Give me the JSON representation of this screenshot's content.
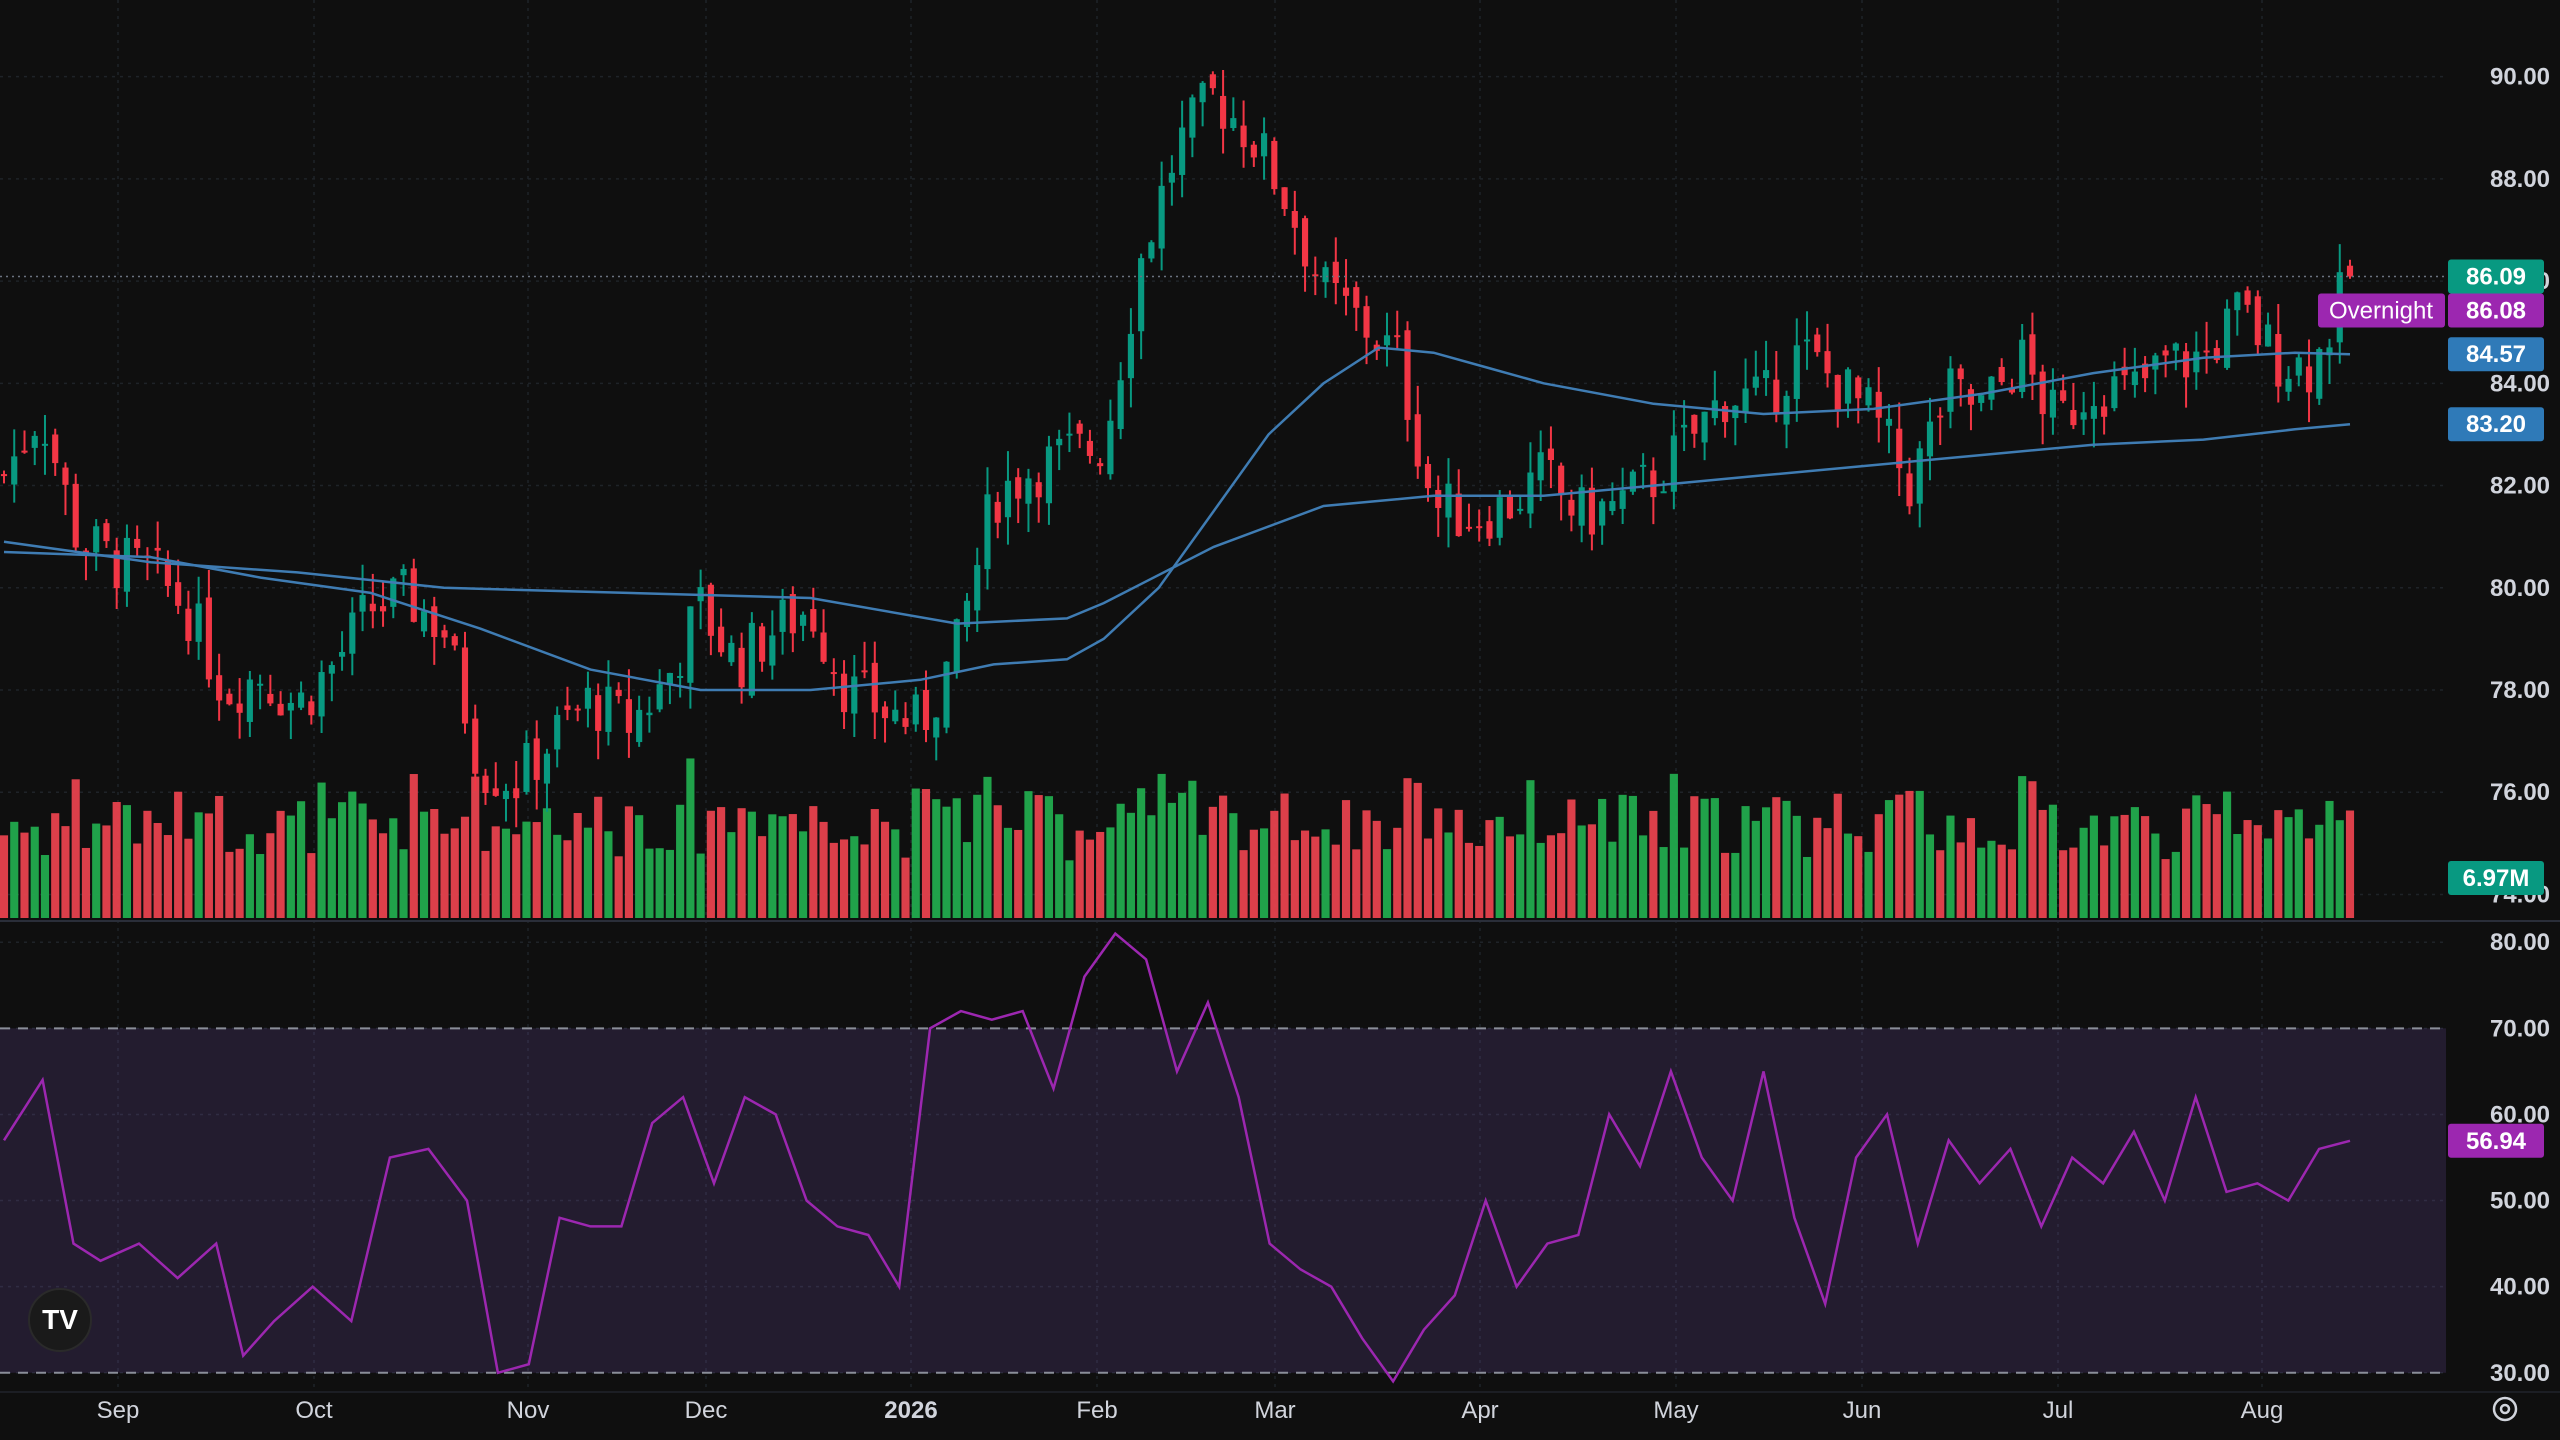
{
  "chart_data": [
    {
      "type": "candlestick",
      "title": "",
      "price_axis": {
        "range": [
          73.5,
          91.5
        ],
        "ticks": [
          "90.00",
          "88.00",
          "86.00",
          "84.00",
          "82.00",
          "80.00",
          "78.00",
          "76.00",
          "74.00"
        ],
        "tick_values": [
          90,
          88,
          86,
          84,
          82,
          80,
          78,
          76,
          74
        ]
      },
      "time_axis": {
        "labels": [
          "Sep",
          "Oct",
          "Nov",
          "Dec",
          "2026",
          "Feb",
          "Mar",
          "Apr",
          "May",
          "Jun",
          "Jul",
          "Aug"
        ],
        "bold_label": "2026"
      },
      "grid": true,
      "last_price": {
        "label": "86.09",
        "value": 86.09,
        "color": "#089981"
      },
      "overnight": {
        "label": "Overnight",
        "price_label": "86.08",
        "value": 86.08,
        "color": "#9c27b0"
      },
      "moving_averages": [
        {
          "label": "84.57",
          "value": 84.57,
          "color": "#2962ff",
          "points": [
            [
              0,
              80.7
            ],
            [
              40,
              80.6
            ],
            [
              70,
              80.2
            ],
            [
              100,
              79.9
            ],
            [
              130,
              79.2
            ],
            [
              160,
              78.4
            ],
            [
              190,
              78.0
            ],
            [
              220,
              78.0
            ],
            [
              250,
              78.2
            ],
            [
              270,
              78.5
            ],
            [
              290,
              78.6
            ],
            [
              300,
              79.0
            ],
            [
              315,
              80.0
            ],
            [
              330,
              81.5
            ],
            [
              345,
              83.0
            ],
            [
              360,
              84.0
            ],
            [
              375,
              84.7
            ],
            [
              390,
              84.6
            ],
            [
              405,
              84.3
            ],
            [
              420,
              84.0
            ],
            [
              450,
              83.6
            ],
            [
              480,
              83.4
            ],
            [
              510,
              83.5
            ],
            [
              540,
              83.8
            ],
            [
              570,
              84.2
            ],
            [
              600,
              84.5
            ],
            [
              625,
              84.6
            ],
            [
              640,
              84.57
            ]
          ]
        },
        {
          "label": "83.20",
          "value": 83.2,
          "color": "#2962ff",
          "points": [
            [
              0,
              80.9
            ],
            [
              40,
              80.5
            ],
            [
              80,
              80.3
            ],
            [
              120,
              80.0
            ],
            [
              170,
              79.9
            ],
            [
              220,
              79.8
            ],
            [
              260,
              79.3
            ],
            [
              290,
              79.4
            ],
            [
              300,
              79.7
            ],
            [
              330,
              80.8
            ],
            [
              360,
              81.6
            ],
            [
              390,
              81.8
            ],
            [
              420,
              81.8
            ],
            [
              450,
              82.0
            ],
            [
              480,
              82.2
            ],
            [
              510,
              82.4
            ],
            [
              540,
              82.6
            ],
            [
              570,
              82.8
            ],
            [
              600,
              82.9
            ],
            [
              625,
              83.1
            ],
            [
              640,
              83.2
            ]
          ]
        }
      ],
      "ohlc_anchors": [
        [
          0,
          82.2
        ],
        [
          10,
          83.5
        ],
        [
          20,
          81.0
        ],
        [
          30,
          80.5
        ],
        [
          40,
          80.3
        ],
        [
          50,
          79.6
        ],
        [
          60,
          78.0
        ],
        [
          70,
          78.3
        ],
        [
          80,
          77.7
        ],
        [
          90,
          78.5
        ],
        [
          100,
          79.6
        ],
        [
          110,
          79.8
        ],
        [
          120,
          79.2
        ],
        [
          130,
          76.5
        ],
        [
          140,
          76.2
        ],
        [
          150,
          77.1
        ],
        [
          160,
          77.8
        ],
        [
          170,
          77.3
        ],
        [
          180,
          78.1
        ],
        [
          190,
          79.6
        ],
        [
          200,
          78.5
        ],
        [
          210,
          79.2
        ],
        [
          220,
          79.6
        ],
        [
          230,
          78.0
        ],
        [
          240,
          77.6
        ],
        [
          250,
          77.3
        ],
        [
          260,
          78.8
        ],
        [
          270,
          81.8
        ],
        [
          280,
          82.3
        ],
        [
          290,
          82.6
        ],
        [
          300,
          82.8
        ],
        [
          310,
          86.4
        ],
        [
          320,
          88.6
        ],
        [
          330,
          89.6
        ],
        [
          340,
          88.9
        ],
        [
          350,
          87.6
        ],
        [
          360,
          85.8
        ],
        [
          370,
          85.2
        ],
        [
          380,
          84.5
        ],
        [
          390,
          81.6
        ],
        [
          400,
          81.4
        ],
        [
          410,
          81.6
        ],
        [
          420,
          82.2
        ],
        [
          430,
          81.4
        ],
        [
          440,
          81.6
        ],
        [
          450,
          82.1
        ],
        [
          460,
          82.9
        ],
        [
          470,
          83.8
        ],
        [
          480,
          83.6
        ],
        [
          490,
          84.6
        ],
        [
          500,
          84.0
        ],
        [
          510,
          83.3
        ],
        [
          520,
          82.0
        ],
        [
          530,
          83.8
        ],
        [
          540,
          83.5
        ],
        [
          550,
          84.5
        ],
        [
          560,
          83.2
        ],
        [
          570,
          84.0
        ],
        [
          580,
          83.8
        ],
        [
          590,
          84.4
        ],
        [
          600,
          84.5
        ],
        [
          610,
          85.4
        ],
        [
          620,
          84.5
        ],
        [
          630,
          84.3
        ],
        [
          640,
          86.09
        ]
      ],
      "volume": {
        "last_label": "6.97M",
        "last_value": 6970000,
        "color_up": "#089981",
        "color_down": "#f23645"
      }
    },
    {
      "type": "line",
      "indicator": "RSI",
      "range": [
        28,
        82
      ],
      "ticks": [
        "80.00",
        "70.00",
        "60.00",
        "50.00",
        "40.00",
        "30.00"
      ],
      "tick_values": [
        80,
        70,
        60,
        50,
        40,
        30
      ],
      "overbought": 70,
      "oversold": 30,
      "last": {
        "label": "56.94",
        "value": 56.94,
        "color": "#9c27b0"
      },
      "points": [
        [
          0,
          57
        ],
        [
          10,
          64
        ],
        [
          18,
          45
        ],
        [
          25,
          43
        ],
        [
          35,
          45
        ],
        [
          45,
          41
        ],
        [
          55,
          45
        ],
        [
          62,
          32
        ],
        [
          70,
          36
        ],
        [
          80,
          40
        ],
        [
          90,
          36
        ],
        [
          100,
          55
        ],
        [
          110,
          56
        ],
        [
          120,
          50
        ],
        [
          128,
          30
        ],
        [
          136,
          31
        ],
        [
          144,
          48
        ],
        [
          152,
          47
        ],
        [
          160,
          47
        ],
        [
          168,
          59
        ],
        [
          176,
          62
        ],
        [
          184,
          52
        ],
        [
          192,
          62
        ],
        [
          200,
          60
        ],
        [
          208,
          50
        ],
        [
          216,
          47
        ],
        [
          224,
          46
        ],
        [
          232,
          40
        ],
        [
          240,
          70
        ],
        [
          248,
          72
        ],
        [
          256,
          71
        ],
        [
          264,
          72
        ],
        [
          272,
          63
        ],
        [
          280,
          76
        ],
        [
          288,
          81
        ],
        [
          296,
          78
        ],
        [
          304,
          65
        ],
        [
          312,
          73
        ],
        [
          320,
          62
        ],
        [
          328,
          45
        ],
        [
          336,
          42
        ],
        [
          344,
          40
        ],
        [
          352,
          34
        ],
        [
          360,
          29
        ],
        [
          368,
          35
        ],
        [
          376,
          39
        ],
        [
          384,
          50
        ],
        [
          392,
          40
        ],
        [
          400,
          45
        ],
        [
          408,
          46
        ],
        [
          416,
          60
        ],
        [
          424,
          54
        ],
        [
          432,
          65
        ],
        [
          440,
          55
        ],
        [
          448,
          50
        ],
        [
          456,
          65
        ],
        [
          464,
          48
        ],
        [
          472,
          38
        ],
        [
          480,
          55
        ],
        [
          488,
          60
        ],
        [
          496,
          45
        ],
        [
          504,
          57
        ],
        [
          512,
          52
        ],
        [
          520,
          56
        ],
        [
          528,
          47
        ],
        [
          536,
          55
        ],
        [
          544,
          52
        ],
        [
          552,
          58
        ],
        [
          560,
          50
        ],
        [
          568,
          62
        ],
        [
          576,
          51
        ],
        [
          584,
          52
        ],
        [
          592,
          50
        ],
        [
          600,
          56
        ],
        [
          608,
          56.94
        ]
      ]
    }
  ],
  "logo": {
    "label": "TV"
  },
  "icons": {
    "logo": "tradingview-logo-icon",
    "settings": "settings-gear-icon"
  },
  "colors": {
    "background": "#0f0f0f",
    "up": "#089981",
    "down": "#f23645",
    "ma": "#2962ff",
    "rsi": "#9c27b0",
    "rsi_band": "rgba(126,87,194,0.18)"
  }
}
